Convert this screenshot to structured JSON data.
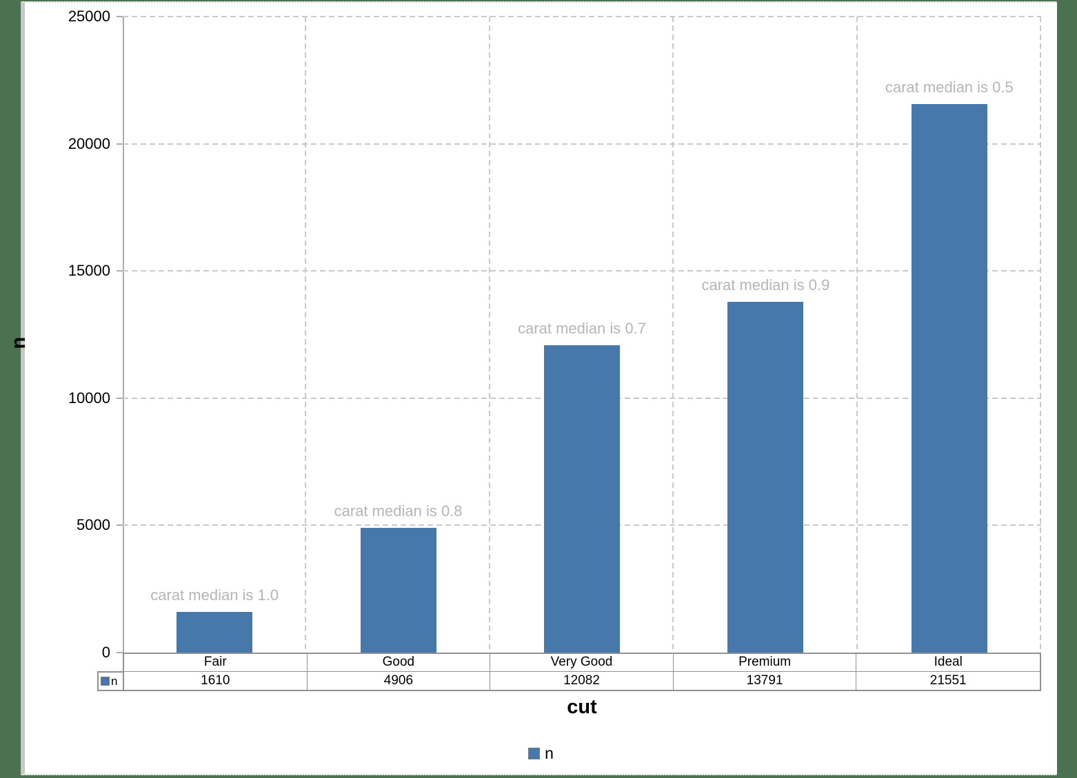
{
  "chart_data": {
    "type": "bar",
    "title": "",
    "xlabel": "cut",
    "ylabel": "n",
    "categories": [
      "Fair",
      "Good",
      "Very Good",
      "Premium",
      "Ideal"
    ],
    "series": [
      {
        "name": "n",
        "values": [
          1610,
          4906,
          12082,
          13791,
          21551
        ]
      }
    ],
    "annotations": [
      "carat median is 1.0",
      "carat median is 0.8",
      "carat median is 0.7",
      "carat median is 0.9",
      "carat median is 0.5"
    ],
    "ylim": [
      0,
      25000
    ],
    "yticks": [
      0,
      5000,
      10000,
      15000,
      20000,
      25000
    ],
    "grid": "dashed",
    "legend_position": "bottom",
    "legend_label": "n",
    "table_stub_label": "n",
    "data_table_shown": true
  },
  "colors": {
    "bar_fill": "#4678AB",
    "annotation_text": "#b5b5b5",
    "desktop_border": "#4A7150"
  }
}
